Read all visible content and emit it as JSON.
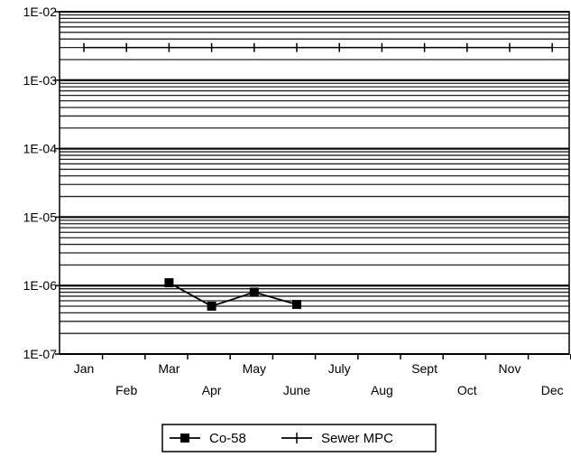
{
  "chart_data": {
    "type": "line",
    "x_categories": [
      "Jan",
      "Feb",
      "Mar",
      "Apr",
      "May",
      "June",
      "July",
      "Aug",
      "Sept",
      "Oct",
      "Nov",
      "Dec"
    ],
    "y_scale": "log",
    "ylim": [
      1e-07,
      0.01
    ],
    "y_tick_labels": [
      "1E-07",
      "1E-06",
      "1E-05",
      "1E-04",
      "1E-03",
      "1E-02"
    ],
    "grid": "horizontal log gridlines",
    "legend_position": "bottom-center",
    "series": [
      {
        "name": "Co-58",
        "marker": "square",
        "x": [
          "Mar",
          "Apr",
          "May",
          "June"
        ],
        "y": [
          1.1e-06,
          5e-07,
          8e-07,
          5.3e-07
        ]
      },
      {
        "name": "Sewer MPC",
        "marker": "plus",
        "x": [
          "Jan",
          "Feb",
          "Mar",
          "Apr",
          "May",
          "June",
          "July",
          "Aug",
          "Sept",
          "Oct",
          "Nov",
          "Dec"
        ],
        "y": [
          0.003,
          0.003,
          0.003,
          0.003,
          0.003,
          0.003,
          0.003,
          0.003,
          0.003,
          0.003,
          0.003,
          0.003
        ]
      }
    ]
  }
}
